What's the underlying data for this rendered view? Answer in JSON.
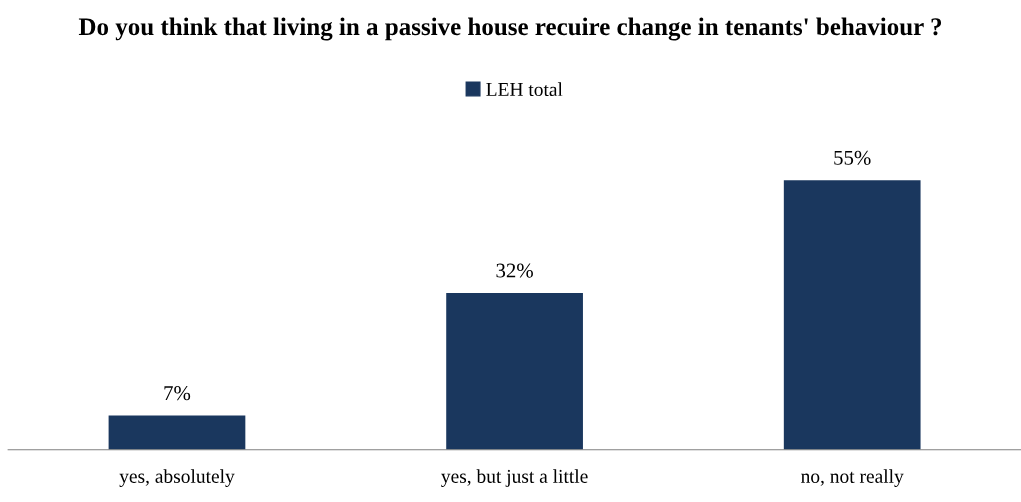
{
  "chart_data": {
    "type": "bar",
    "title": "Do you think that living in a passive house recuire change in tenants' behaviour ?",
    "categories": [
      "yes, absolutely",
      "yes, but just a little",
      "no, not really"
    ],
    "series": [
      {
        "name": "LEH total",
        "color": "#1a375e",
        "values": [
          7,
          32,
          55
        ],
        "value_labels": [
          "7%",
          "32%",
          "55%"
        ]
      }
    ],
    "legend": "top",
    "grid": false,
    "tick_labels": "x"
  }
}
